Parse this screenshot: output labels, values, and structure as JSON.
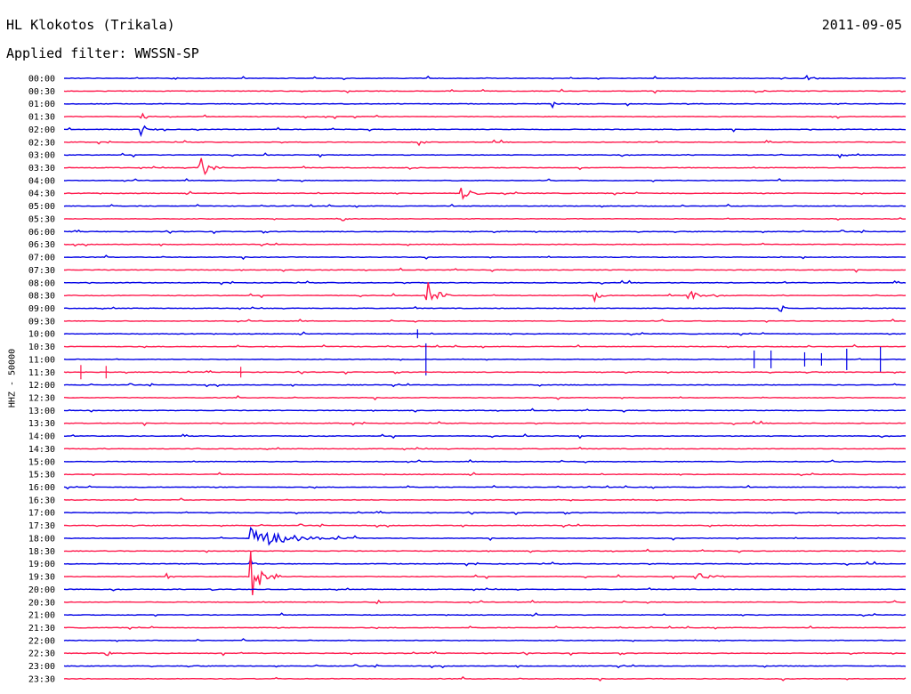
{
  "header": {
    "station": "HL Klokotos (Trikala)",
    "date": "2011-09-05",
    "filter": "Applied filter: WWSSN-SP",
    "side_label": "HHZ - 50000"
  },
  "colors": {
    "blue": "#0000e6",
    "red": "#ff1a4d"
  },
  "chart_data": {
    "type": "line",
    "title": "HL Klokotos (Trikala)",
    "subtitle": "Applied filter: WWSSN-SP",
    "ylabel": "HHZ - 50000",
    "categories": [
      "00:00",
      "00:30",
      "01:00",
      "01:30",
      "02:00",
      "02:30",
      "03:00",
      "03:30",
      "04:00",
      "04:30",
      "05:00",
      "05:30",
      "06:00",
      "06:30",
      "07:00",
      "07:30",
      "08:00",
      "08:30",
      "09:00",
      "09:30",
      "10:00",
      "10:30",
      "11:00",
      "11:30",
      "12:00",
      "12:30",
      "13:00",
      "13:30",
      "14:00",
      "14:30",
      "15:00",
      "15:30",
      "16:00",
      "16:30",
      "17:00",
      "17:30",
      "18:00",
      "18:30",
      "19:00",
      "19:30",
      "20:00",
      "20:30",
      "21:00",
      "21:30",
      "22:00",
      "22:30",
      "23:00",
      "23:30"
    ],
    "row_colors": [
      "blue",
      "red"
    ],
    "events": [
      {
        "row": 0,
        "at": 0.12,
        "amp": 8,
        "dur": 0.02
      },
      {
        "row": 0,
        "at": 0.88,
        "amp": 7,
        "dur": 0.02
      },
      {
        "row": 1,
        "at": 0.82,
        "amp": 6,
        "dur": 0.02
      },
      {
        "row": 2,
        "at": 0.58,
        "amp": 5,
        "dur": 0.015
      },
      {
        "row": 3,
        "at": 0.09,
        "amp": 5,
        "dur": 0.02
      },
      {
        "row": 4,
        "at": 0.09,
        "amp": 10,
        "dur": 0.025
      },
      {
        "row": 5,
        "at": 0.42,
        "amp": 5,
        "dur": 0.015
      },
      {
        "row": 6,
        "at": 0.92,
        "amp": 6,
        "dur": 0.01
      },
      {
        "row": 7,
        "at": 0.16,
        "amp": 18,
        "dur": 0.03
      },
      {
        "row": 7,
        "at": 0.41,
        "amp": 6,
        "dur": 0.015
      },
      {
        "row": 9,
        "at": 0.47,
        "amp": 15,
        "dur": 0.03
      },
      {
        "row": 11,
        "at": 0.33,
        "amp": 3,
        "dur": 0.015
      },
      {
        "row": 17,
        "at": 0.43,
        "amp": 20,
        "dur": 0.03
      },
      {
        "row": 17,
        "at": 0.63,
        "amp": 7,
        "dur": 0.02
      },
      {
        "row": 17,
        "at": 0.74,
        "amp": 10,
        "dur": 0.025
      },
      {
        "row": 18,
        "at": 0.85,
        "amp": 6,
        "dur": 0.015
      },
      {
        "row": 36,
        "at": 0.22,
        "amp": 12,
        "dur": 0.13
      },
      {
        "row": 38,
        "at": 0.22,
        "amp": 9,
        "dur": 0.01
      },
      {
        "row": 39,
        "at": 0.22,
        "amp": 35,
        "dur": 0.035
      },
      {
        "row": 39,
        "at": 0.12,
        "amp": 5,
        "dur": 0.015
      },
      {
        "row": 39,
        "at": 0.75,
        "amp": 6,
        "dur": 0.04
      },
      {
        "row": 40,
        "at": 0.17,
        "amp": 4,
        "dur": 0.015
      },
      {
        "row": 41,
        "at": 0.37,
        "amp": 5,
        "dur": 0.015
      },
      {
        "row": 45,
        "at": 0.05,
        "amp": 4,
        "dur": 0.015
      }
    ],
    "spikes": [
      {
        "row": 20,
        "at": 0.42,
        "amp": 5
      },
      {
        "row": 22,
        "at": 0.43,
        "amp": 18
      },
      {
        "row": 22,
        "at": 0.82,
        "amp": 10
      },
      {
        "row": 22,
        "at": 0.84,
        "amp": 10
      },
      {
        "row": 22,
        "at": 0.88,
        "amp": 8
      },
      {
        "row": 22,
        "at": 0.9,
        "amp": 7
      },
      {
        "row": 22,
        "at": 0.93,
        "amp": 12
      },
      {
        "row": 22,
        "at": 0.97,
        "amp": 14
      },
      {
        "row": 23,
        "at": 0.02,
        "amp": 8
      },
      {
        "row": 23,
        "at": 0.05,
        "amp": 7
      },
      {
        "row": 23,
        "at": 0.21,
        "amp": 6
      }
    ]
  }
}
